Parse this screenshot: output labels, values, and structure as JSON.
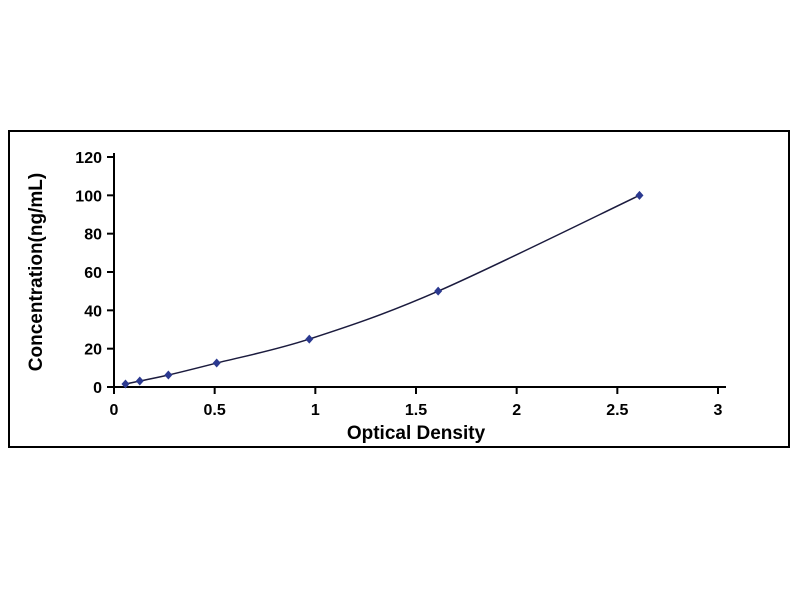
{
  "chart_data": {
    "type": "line",
    "title": "",
    "xlabel": "Optical Density",
    "ylabel": "Concentration(ng/mL)",
    "x": [
      0.057,
      0.128,
      0.27,
      0.51,
      0.97,
      1.61,
      2.61
    ],
    "y": [
      1.56,
      3.12,
      6.25,
      12.5,
      25,
      50,
      100
    ],
    "xlim": [
      0,
      3
    ],
    "ylim": [
      0,
      120
    ],
    "x_ticks": [
      0,
      0.5,
      1,
      1.5,
      2,
      2.5,
      3
    ],
    "y_ticks": [
      0,
      20,
      40,
      60,
      80,
      100,
      120
    ],
    "grid": false,
    "legend": null,
    "marker": "diamond",
    "line_color": "#1b1b3e",
    "marker_color": "#2b3990",
    "axis_color": "#000000"
  }
}
